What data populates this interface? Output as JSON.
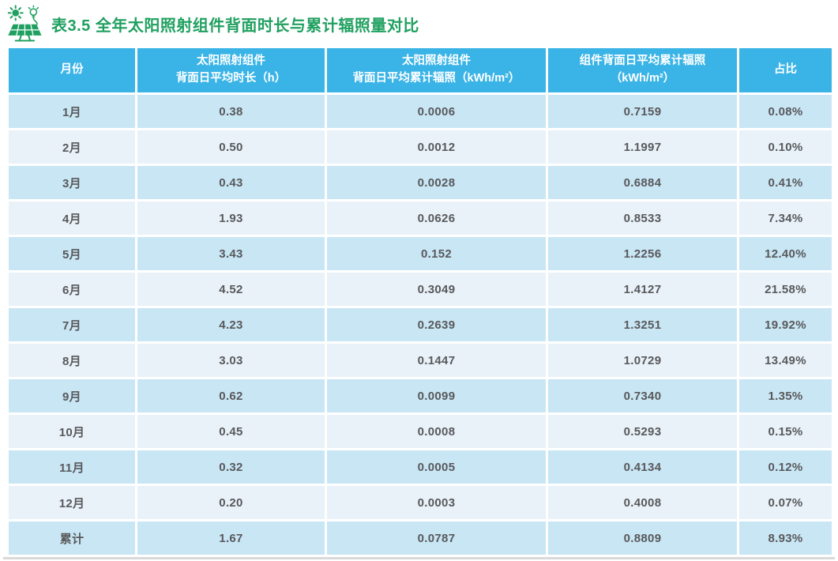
{
  "title": {
    "text": "表3.5 全年太阳照射组件背面时长与累计辐照量对比",
    "icon": "solar-panel-sun-bulb-icon"
  },
  "colors": {
    "title_green": "#20a060",
    "header_blue": "#3ab4e7",
    "row_dark": "#c9e6f5",
    "row_light": "#e9f2f9",
    "cell_text": "#58595b",
    "header_text": "#ffffff",
    "bottom_edge_gray": "#d9d9d9"
  },
  "table": {
    "columns": [
      {
        "label": "月份"
      },
      {
        "label": "太阳照射组件\n背面日平均时长（h）"
      },
      {
        "label": "太阳照射组件\n背面日平均累计辐照（kWh/m²）"
      },
      {
        "label": "组件背面日平均累计辐照\n（kWh/m²）"
      },
      {
        "label": "占比"
      }
    ],
    "rows": [
      [
        "1月",
        "0.38",
        "0.0006",
        "0.7159",
        "0.08%"
      ],
      [
        "2月",
        "0.50",
        "0.0012",
        "1.1997",
        "0.10%"
      ],
      [
        "3月",
        "0.43",
        "0.0028",
        "0.6884",
        "0.41%"
      ],
      [
        "4月",
        "1.93",
        "0.0626",
        "0.8533",
        "7.34%"
      ],
      [
        "5月",
        "3.43",
        "0.152",
        "1.2256",
        "12.40%"
      ],
      [
        "6月",
        "4.52",
        "0.3049",
        "1.4127",
        "21.58%"
      ],
      [
        "7月",
        "4.23",
        "0.2639",
        "1.3251",
        "19.92%"
      ],
      [
        "8月",
        "3.03",
        "0.1447",
        "1.0729",
        "13.49%"
      ],
      [
        "9月",
        "0.62",
        "0.0099",
        "0.7340",
        "1.35%"
      ],
      [
        "10月",
        "0.45",
        "0.0008",
        "0.5293",
        "0.15%"
      ],
      [
        "11月",
        "0.32",
        "0.0005",
        "0.4134",
        "0.12%"
      ],
      [
        "12月",
        "0.20",
        "0.0003",
        "0.4008",
        "0.07%"
      ],
      [
        "累计",
        "1.67",
        "0.0787",
        "0.8809",
        "8.93%"
      ]
    ],
    "total_row_label": "累计"
  }
}
